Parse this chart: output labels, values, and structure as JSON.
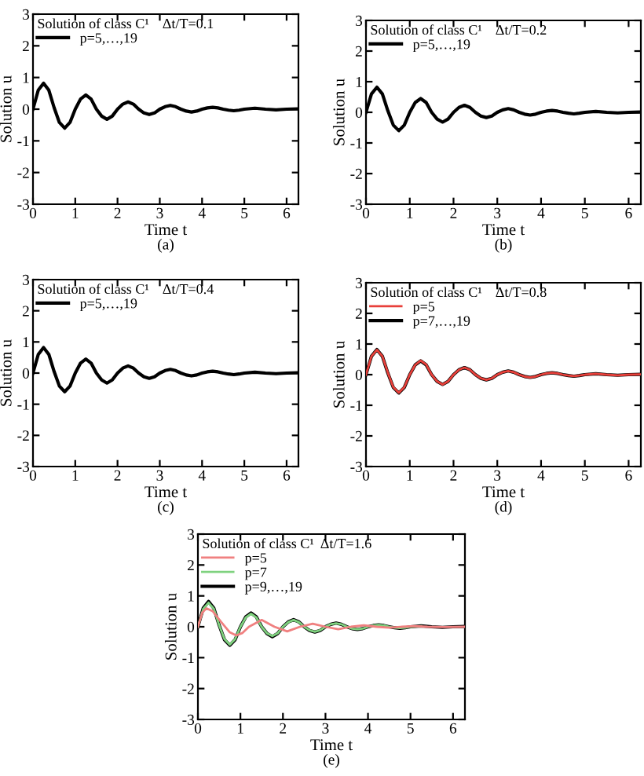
{
  "chart_data": [
    {
      "type": "line",
      "legend_title": "Solution of class C¹    Δt/T=0.1",
      "xlabel": "Time t",
      "ylabel": "Solution u",
      "annotations": [
        "(a)"
      ],
      "legend": "top left",
      "xlim": [
        0,
        6.28
      ],
      "ylim": [
        -3,
        3
      ],
      "xticks": [
        0,
        1,
        2,
        3,
        4,
        5,
        6
      ],
      "yticks": [
        -3,
        -2,
        -1,
        0,
        1,
        2,
        3
      ],
      "grid": false,
      "x": [
        0,
        0.125,
        0.25,
        0.375,
        0.5,
        0.625,
        0.75,
        0.875,
        1.0,
        1.125,
        1.25,
        1.375,
        1.5,
        1.625,
        1.75,
        1.875,
        2.0,
        2.125,
        2.25,
        2.375,
        2.5,
        2.625,
        2.75,
        2.875,
        3.0,
        3.125,
        3.25,
        3.375,
        3.5,
        3.625,
        3.75,
        3.875,
        4.0,
        4.125,
        4.25,
        4.375,
        4.5,
        4.625,
        4.75,
        4.875,
        5.0,
        5.25,
        5.5,
        5.75,
        6.0,
        6.28
      ],
      "series": [
        {
          "name": "p=5,…,19",
          "color": "#000000",
          "values": [
            0,
            0.6,
            0.82,
            0.6,
            0.05,
            -0.42,
            -0.6,
            -0.42,
            0,
            0.32,
            0.45,
            0.32,
            0,
            -0.22,
            -0.32,
            -0.22,
            0,
            0.16,
            0.23,
            0.16,
            0,
            -0.12,
            -0.17,
            -0.12,
            0,
            0.08,
            0.12,
            0.08,
            0,
            -0.06,
            -0.09,
            -0.06,
            0,
            0.04,
            0.06,
            0.04,
            0,
            -0.03,
            -0.05,
            -0.03,
            0,
            0.03,
            0,
            -0.02,
            0,
            0.01
          ]
        }
      ]
    },
    {
      "type": "line",
      "legend_title": "Solution of class C¹    Δt/T=0.2",
      "xlabel": "Time t",
      "ylabel": "Solution u",
      "annotations": [
        "(b)"
      ],
      "legend": "top left",
      "xlim": [
        0,
        6.28
      ],
      "ylim": [
        -3,
        3
      ],
      "xticks": [
        0,
        1,
        2,
        3,
        4,
        5,
        6
      ],
      "yticks": [
        -3,
        -2,
        -1,
        0,
        1,
        2,
        3
      ],
      "grid": false,
      "x": [
        0,
        0.125,
        0.25,
        0.375,
        0.5,
        0.625,
        0.75,
        0.875,
        1.0,
        1.125,
        1.25,
        1.375,
        1.5,
        1.625,
        1.75,
        1.875,
        2.0,
        2.125,
        2.25,
        2.375,
        2.5,
        2.625,
        2.75,
        2.875,
        3.0,
        3.125,
        3.25,
        3.375,
        3.5,
        3.625,
        3.75,
        3.875,
        4.0,
        4.125,
        4.25,
        4.375,
        4.5,
        4.625,
        4.75,
        4.875,
        5.0,
        5.25,
        5.5,
        5.75,
        6.0,
        6.28
      ],
      "series": [
        {
          "name": "p=5,…,19",
          "color": "#000000",
          "values": [
            0,
            0.6,
            0.82,
            0.6,
            0.05,
            -0.42,
            -0.6,
            -0.42,
            0,
            0.32,
            0.45,
            0.32,
            0,
            -0.22,
            -0.32,
            -0.22,
            0,
            0.16,
            0.23,
            0.16,
            0,
            -0.12,
            -0.17,
            -0.12,
            0,
            0.08,
            0.12,
            0.08,
            0,
            -0.06,
            -0.09,
            -0.06,
            0,
            0.04,
            0.06,
            0.04,
            0,
            -0.03,
            -0.05,
            -0.03,
            0,
            0.03,
            0,
            -0.02,
            0,
            0.01
          ]
        }
      ]
    },
    {
      "type": "line",
      "legend_title": "Solution of class C¹    Δt/T=0.4",
      "xlabel": "Time t",
      "ylabel": "Solution u",
      "annotations": [
        "(c)"
      ],
      "legend": "top left",
      "xlim": [
        0,
        6.28
      ],
      "ylim": [
        -3,
        3
      ],
      "xticks": [
        0,
        1,
        2,
        3,
        4,
        5,
        6
      ],
      "yticks": [
        -3,
        -2,
        -1,
        0,
        1,
        2,
        3
      ],
      "grid": false,
      "x": [
        0,
        0.125,
        0.25,
        0.375,
        0.5,
        0.625,
        0.75,
        0.875,
        1.0,
        1.125,
        1.25,
        1.375,
        1.5,
        1.625,
        1.75,
        1.875,
        2.0,
        2.125,
        2.25,
        2.375,
        2.5,
        2.625,
        2.75,
        2.875,
        3.0,
        3.125,
        3.25,
        3.375,
        3.5,
        3.625,
        3.75,
        3.875,
        4.0,
        4.125,
        4.25,
        4.375,
        4.5,
        4.625,
        4.75,
        4.875,
        5.0,
        5.25,
        5.5,
        5.75,
        6.0,
        6.28
      ],
      "series": [
        {
          "name": "p=5,…,19",
          "color": "#000000",
          "values": [
            0,
            0.6,
            0.82,
            0.6,
            0.05,
            -0.42,
            -0.6,
            -0.42,
            0,
            0.32,
            0.45,
            0.32,
            0,
            -0.22,
            -0.32,
            -0.22,
            0,
            0.16,
            0.23,
            0.16,
            0,
            -0.12,
            -0.17,
            -0.12,
            0,
            0.08,
            0.12,
            0.08,
            0,
            -0.06,
            -0.09,
            -0.06,
            0,
            0.04,
            0.06,
            0.04,
            0,
            -0.03,
            -0.05,
            -0.03,
            0,
            0.03,
            0,
            -0.02,
            0,
            0.01
          ]
        }
      ]
    },
    {
      "type": "line",
      "legend_title": "Solution of class C¹    Δt/T=0.8",
      "xlabel": "Time t",
      "ylabel": "Solution u",
      "annotations": [
        "(d)"
      ],
      "legend": "top left",
      "xlim": [
        0,
        6.28
      ],
      "ylim": [
        -3,
        3
      ],
      "xticks": [
        0,
        1,
        2,
        3,
        4,
        5,
        6
      ],
      "yticks": [
        -3,
        -2,
        -1,
        0,
        1,
        2,
        3
      ],
      "grid": false,
      "x": [
        0,
        0.125,
        0.25,
        0.375,
        0.5,
        0.625,
        0.75,
        0.875,
        1.0,
        1.125,
        1.25,
        1.375,
        1.5,
        1.625,
        1.75,
        1.875,
        2.0,
        2.125,
        2.25,
        2.375,
        2.5,
        2.625,
        2.75,
        2.875,
        3.0,
        3.125,
        3.25,
        3.375,
        3.5,
        3.625,
        3.75,
        3.875,
        4.0,
        4.125,
        4.25,
        4.375,
        4.5,
        4.625,
        4.75,
        4.875,
        5.0,
        5.25,
        5.5,
        5.75,
        6.0,
        6.28
      ],
      "series": [
        {
          "name": "p=5",
          "color": "#e8403a",
          "values": [
            0,
            0.6,
            0.81,
            0.6,
            0.06,
            -0.41,
            -0.59,
            -0.41,
            0,
            0.32,
            0.46,
            0.33,
            0,
            -0.22,
            -0.32,
            -0.22,
            0,
            0.16,
            0.23,
            0.16,
            0,
            -0.12,
            -0.17,
            -0.12,
            0,
            0.08,
            0.12,
            0.08,
            0,
            -0.06,
            -0.09,
            -0.06,
            0,
            0.04,
            0.06,
            0.04,
            0,
            -0.03,
            -0.05,
            -0.03,
            0,
            0.03,
            0,
            -0.02,
            0,
            0.01
          ]
        },
        {
          "name": "p=7,…,19",
          "color": "#000000",
          "values": [
            0,
            0.6,
            0.82,
            0.6,
            0.05,
            -0.42,
            -0.6,
            -0.42,
            0,
            0.32,
            0.45,
            0.32,
            0,
            -0.22,
            -0.32,
            -0.22,
            0,
            0.16,
            0.23,
            0.16,
            0,
            -0.12,
            -0.17,
            -0.12,
            0,
            0.08,
            0.12,
            0.08,
            0,
            -0.06,
            -0.09,
            -0.06,
            0,
            0.04,
            0.06,
            0.04,
            0,
            -0.03,
            -0.05,
            -0.03,
            0,
            0.03,
            0,
            -0.02,
            0,
            0.01
          ]
        }
      ]
    },
    {
      "type": "line",
      "legend_title": "Solution of class C¹  Δt/T=1.6",
      "xlabel": "Time t",
      "ylabel": "Solution u",
      "annotations": [
        "(e)"
      ],
      "legend": "top left",
      "xlim": [
        0,
        6.28
      ],
      "ylim": [
        -3,
        3
      ],
      "xticks": [
        0,
        1,
        2,
        3,
        4,
        5,
        6
      ],
      "yticks": [
        -3,
        -2,
        -1,
        0,
        1,
        2,
        3
      ],
      "grid": false,
      "x": [
        0,
        0.125,
        0.25,
        0.375,
        0.5,
        0.625,
        0.75,
        0.875,
        1.0,
        1.125,
        1.25,
        1.375,
        1.5,
        1.625,
        1.75,
        1.875,
        2.0,
        2.125,
        2.25,
        2.375,
        2.5,
        2.625,
        2.75,
        2.875,
        3.0,
        3.125,
        3.25,
        3.375,
        3.5,
        3.625,
        3.75,
        3.875,
        4.0,
        4.125,
        4.25,
        4.375,
        4.5,
        4.625,
        4.75,
        4.875,
        5.0,
        5.25,
        5.5,
        5.75,
        6.0,
        6.28
      ],
      "series": [
        {
          "name": "p=5",
          "color": "#f08080",
          "x": [
            0,
            0.1,
            0.2,
            0.35,
            0.55,
            0.75,
            0.9,
            1.05,
            1.2,
            1.5,
            1.8,
            2.1,
            2.4,
            2.7,
            3.0,
            3.3,
            3.6,
            3.9,
            4.2,
            4.5,
            4.8,
            5.1,
            5.4,
            5.8,
            6.28
          ],
          "values": [
            0,
            0.45,
            0.6,
            0.5,
            0.15,
            -0.18,
            -0.28,
            -0.2,
            0,
            0.22,
            0,
            -0.15,
            0,
            0.1,
            0,
            -0.08,
            0,
            0.05,
            0,
            -0.03,
            0,
            0.02,
            0,
            -0.01,
            0
          ]
        },
        {
          "name": "p=7",
          "color": "#7fd27f",
          "values": [
            0,
            0.58,
            0.78,
            0.58,
            0.05,
            -0.4,
            -0.58,
            -0.4,
            0,
            0.3,
            0.42,
            0.3,
            0,
            -0.21,
            -0.3,
            -0.21,
            0,
            0.15,
            0.22,
            0.15,
            0,
            -0.11,
            -0.16,
            -0.11,
            0,
            0.08,
            0.11,
            0.08,
            0,
            -0.06,
            -0.08,
            -0.06,
            0,
            0.04,
            0.06,
            0.04,
            0,
            -0.03,
            -0.04,
            -0.03,
            0,
            0.02,
            null,
            null,
            null,
            null
          ]
        },
        {
          "name": "p=9,…,19",
          "color": "#000000",
          "values": [
            0,
            0.6,
            0.82,
            0.6,
            0.05,
            -0.42,
            -0.6,
            -0.42,
            0,
            0.32,
            0.45,
            0.32,
            0,
            -0.22,
            -0.32,
            -0.22,
            0,
            0.16,
            0.23,
            0.16,
            0,
            -0.12,
            -0.17,
            -0.12,
            0,
            0.08,
            0.12,
            0.08,
            0,
            -0.06,
            -0.09,
            -0.06,
            0,
            0.04,
            0.06,
            0.04,
            0,
            -0.03,
            -0.05,
            -0.03,
            0,
            0.03,
            0,
            -0.02,
            0,
            0.01
          ]
        }
      ]
    }
  ]
}
